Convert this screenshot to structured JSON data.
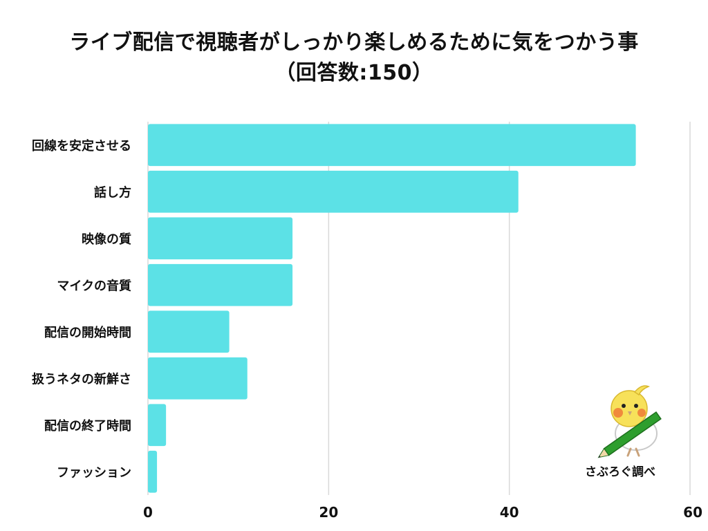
{
  "title_line1": "ライブ配信で視聴者がしっかり楽しめるために気をつかう事",
  "title_line2": "（回答数:150）",
  "credit": "さぶろぐ調べ",
  "colors": {
    "bar": "#5ce1e6",
    "grid": "#d9d9d9",
    "text": "#111111"
  },
  "chart_data": {
    "type": "bar",
    "orientation": "horizontal",
    "categories": [
      "回線を安定させる",
      "話し方",
      "映像の質",
      "マイクの音質",
      "配信の開始時間",
      "扱うネタの新鮮さ",
      "配信の終了時間",
      "ファッション"
    ],
    "values": [
      54,
      41,
      16,
      16,
      9,
      11,
      2,
      1
    ],
    "xlim": [
      0,
      60
    ],
    "xticks": [
      0,
      20,
      40,
      60
    ],
    "grid": true,
    "xlabel": "",
    "ylabel": ""
  }
}
